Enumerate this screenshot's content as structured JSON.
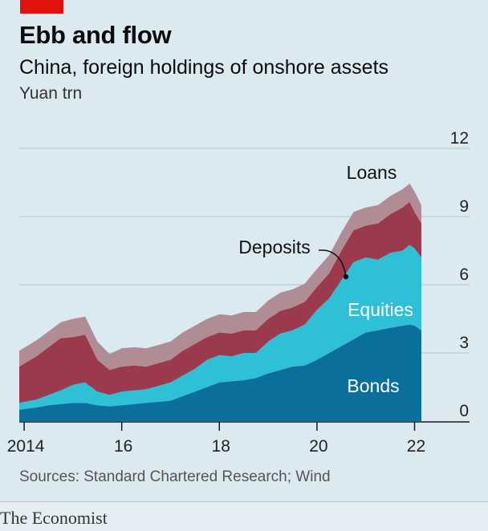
{
  "title": "Ebb and flow",
  "subtitle": "China, foreign holdings of onshore assets",
  "units": "Yuan trn",
  "source": "Sources: Standard Chartered Research; Wind",
  "brand": "The Economist",
  "colors": {
    "bonds": "#0b6f9c",
    "equities": "#2ec0d6",
    "deposits": "#9b3a4c",
    "loans": "#b08c95",
    "brand_red": "#e3120b"
  },
  "chart_data": {
    "type": "area",
    "stacked": true,
    "title": "Ebb and flow",
    "subtitle": "China, foreign holdings of onshore assets",
    "ylabel": "Yuan trn",
    "ylim": [
      0,
      12
    ],
    "yticks": [
      0,
      3,
      6,
      9,
      12
    ],
    "xlim": [
      2013.9,
      2022.14
    ],
    "xticks": [
      {
        "value": 2014,
        "label": "2014"
      },
      {
        "value": 2016,
        "label": "16"
      },
      {
        "value": 2018,
        "label": "18"
      },
      {
        "value": 2020,
        "label": "20"
      },
      {
        "value": 2022,
        "label": "22"
      }
    ],
    "grid": true,
    "y_axis_position": "right",
    "x": [
      2013.9,
      2014.25,
      2014.5,
      2014.75,
      2015.0,
      2015.25,
      2015.5,
      2015.75,
      2016.0,
      2016.25,
      2016.5,
      2016.75,
      2017.0,
      2017.25,
      2017.5,
      2017.75,
      2018.0,
      2018.25,
      2018.5,
      2018.75,
      2019.0,
      2019.25,
      2019.5,
      2019.75,
      2020.0,
      2020.25,
      2020.5,
      2020.75,
      2021.0,
      2021.25,
      2021.5,
      2021.75,
      2021.9,
      2022.0,
      2022.14
    ],
    "series": [
      {
        "name": "Bonds",
        "key": "bonds",
        "values": [
          0.5,
          0.6,
          0.7,
          0.75,
          0.8,
          0.8,
          0.7,
          0.65,
          0.7,
          0.75,
          0.8,
          0.85,
          0.9,
          1.1,
          1.3,
          1.5,
          1.7,
          1.75,
          1.8,
          1.9,
          2.1,
          2.25,
          2.4,
          2.45,
          2.7,
          3.0,
          3.3,
          3.6,
          3.9,
          4.0,
          4.1,
          4.2,
          4.25,
          4.2,
          4.0
        ]
      },
      {
        "name": "Equities",
        "key": "equities",
        "values": [
          0.3,
          0.35,
          0.45,
          0.6,
          0.8,
          0.9,
          0.6,
          0.5,
          0.6,
          0.6,
          0.6,
          0.7,
          0.8,
          0.9,
          1.0,
          1.2,
          1.2,
          1.1,
          1.2,
          1.1,
          1.4,
          1.6,
          1.6,
          1.8,
          2.2,
          2.4,
          2.9,
          3.4,
          3.3,
          3.1,
          3.3,
          3.3,
          3.5,
          3.4,
          3.2
        ]
      },
      {
        "name": "Deposits",
        "key": "deposits",
        "values": [
          1.6,
          1.9,
          2.1,
          2.3,
          2.1,
          2.1,
          1.4,
          1.1,
          1.1,
          1.1,
          1.0,
          1.0,
          1.0,
          1.1,
          1.1,
          1.0,
          1.0,
          1.0,
          1.0,
          1.0,
          1.0,
          1.0,
          1.0,
          1.0,
          1.0,
          1.1,
          1.3,
          1.4,
          1.4,
          1.6,
          1.7,
          1.9,
          1.9,
          1.6,
          1.5
        ]
      },
      {
        "name": "Loans",
        "key": "loans",
        "values": [
          0.7,
          0.7,
          0.7,
          0.7,
          0.8,
          0.8,
          0.8,
          0.7,
          0.8,
          0.8,
          0.8,
          0.8,
          0.8,
          0.8,
          0.8,
          0.8,
          0.8,
          0.8,
          0.8,
          0.8,
          0.8,
          0.8,
          0.8,
          0.8,
          0.8,
          0.8,
          0.8,
          0.8,
          0.8,
          0.8,
          0.8,
          0.8,
          0.8,
          0.9,
          0.8
        ]
      }
    ],
    "annotations": [
      "Loans",
      "Deposits",
      "Equities",
      "Bonds"
    ]
  }
}
